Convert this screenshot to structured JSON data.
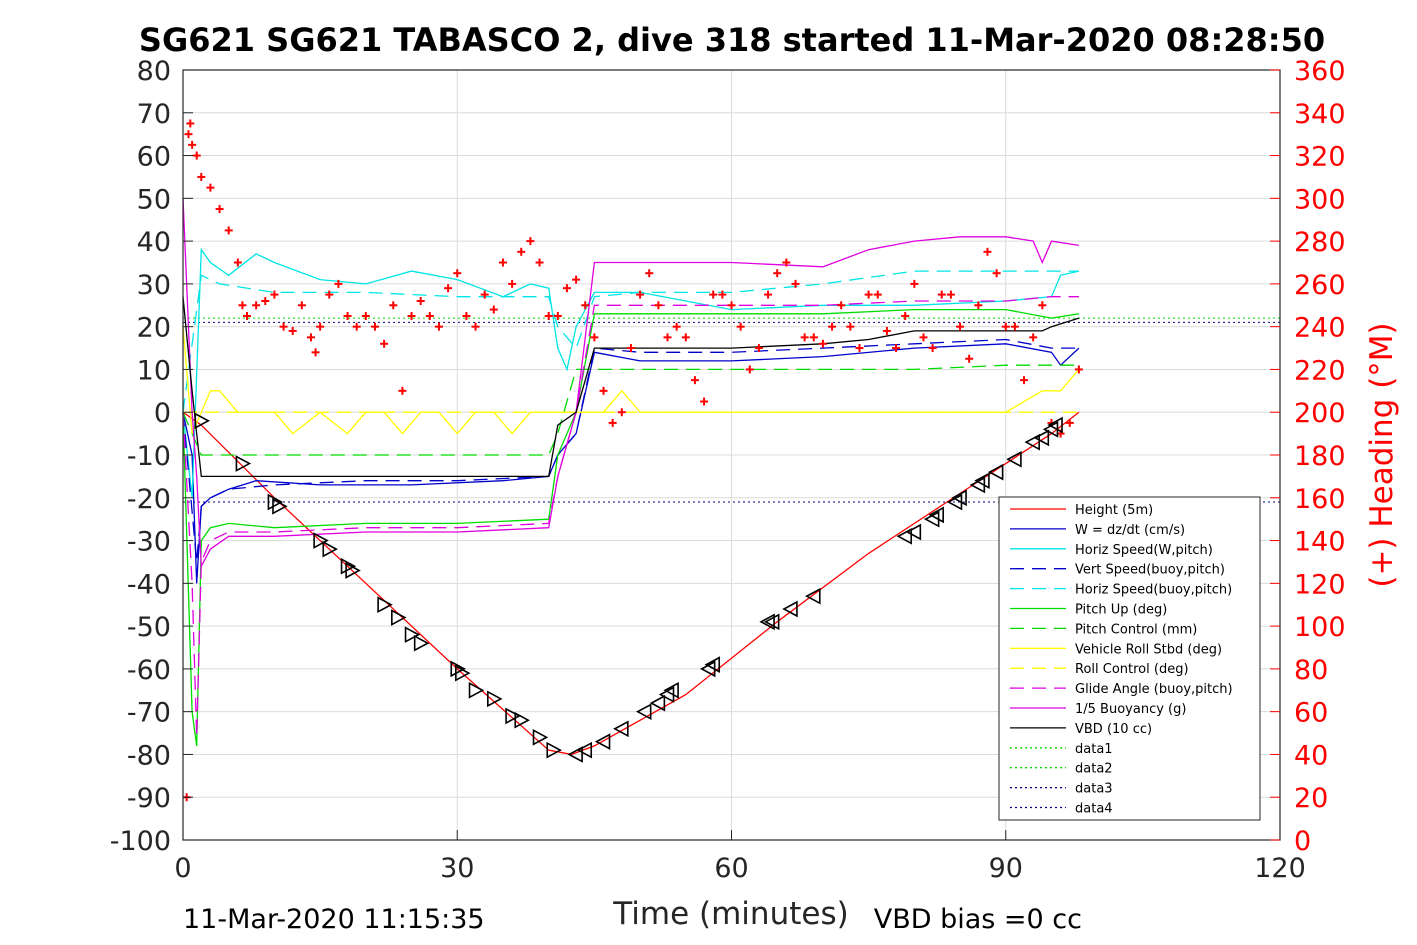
{
  "chart_data": {
    "type": "line",
    "title": "SG621 SG621 TABASCO 2, dive 318 started 11-Mar-2020 08:28:50",
    "xlabel": "Time (minutes)",
    "ylabel_right": "(+) Heading (°M)",
    "xlim": [
      0,
      120
    ],
    "ylim": [
      -100,
      80
    ],
    "y2lim": [
      0,
      360
    ],
    "x_ticks": [
      "0",
      "30",
      "60",
      "90",
      "120"
    ],
    "y_ticks": [
      "80",
      "70",
      "60",
      "50",
      "40",
      "30",
      "20",
      "10",
      "0",
      "-10",
      "-20",
      "-30",
      "-40",
      "-50",
      "-60",
      "-70",
      "-80",
      "-90",
      "-100"
    ],
    "y2_ticks": [
      "360",
      "340",
      "320",
      "300",
      "280",
      "260",
      "240",
      "220",
      "200",
      "180",
      "160",
      "140",
      "120",
      "100",
      "80",
      "60",
      "40",
      "20",
      "0"
    ],
    "grid": true,
    "legend_position": "bottom-right",
    "footer_left": "11-Mar-2020 11:15:35",
    "footer_right": "VBD bias =0 cc",
    "colors": {
      "height": "#ff0000",
      "w": "#0000cc",
      "horiz_speed": "#00e5e5",
      "vert_speed_buoy": "#0000cc",
      "horiz_speed_buoy": "#00e5e5",
      "pitch_up": "#00dd00",
      "pitch_control": "#00dd00",
      "roll": "#ffff00",
      "roll_control": "#ffff00",
      "glide_angle": "#e000e0",
      "buoyancy": "#e000e0",
      "vbd": "#000000",
      "heading": "#ff0000"
    },
    "legend": [
      {
        "label": "Height (5m)",
        "color": "#ff0000",
        "dash": "solid"
      },
      {
        "label": "W = dz/dt (cm/s)",
        "color": "#0000cc",
        "dash": "solid"
      },
      {
        "label": "Horiz Speed(W,pitch)",
        "color": "#00e5e5",
        "dash": "solid"
      },
      {
        "label": "Vert Speed(buoy,pitch)",
        "color": "#0000cc",
        "dash": "dashed"
      },
      {
        "label": "Horiz Speed(buoy,pitch)",
        "color": "#00e5e5",
        "dash": "dashed"
      },
      {
        "label": "Pitch Up (deg)",
        "color": "#00dd00",
        "dash": "solid"
      },
      {
        "label": "Pitch Control (mm)",
        "color": "#00dd00",
        "dash": "dashed"
      },
      {
        "label": "Vehicle Roll Stbd (deg)",
        "color": "#ffff00",
        "dash": "solid"
      },
      {
        "label": "Roll Control (deg)",
        "color": "#ffff00",
        "dash": "dashed"
      },
      {
        "label": "Glide Angle (buoy,pitch)",
        "color": "#e000e0",
        "dash": "dashed"
      },
      {
        "label": "1/5 Buoyancy (g)",
        "color": "#e000e0",
        "dash": "solid"
      },
      {
        "label": "VBD (10 cc)",
        "color": "#000000",
        "dash": "solid"
      },
      {
        "label": "data1",
        "color": "#00dd00",
        "dash": "dotted"
      },
      {
        "label": "data2",
        "color": "#00dd00",
        "dash": "dotted"
      },
      {
        "label": "data3",
        "color": "#000080",
        "dash": "dotted"
      },
      {
        "label": "data4",
        "color": "#000080",
        "dash": "dotted"
      }
    ],
    "series": [
      {
        "key": "height",
        "dash": "solid",
        "width": 1,
        "x": [
          0,
          2,
          10,
          20,
          30,
          40,
          42.5,
          45,
          55,
          65,
          75,
          85,
          95,
          98
        ],
        "y": [
          0,
          -3,
          -20,
          -40,
          -60,
          -79,
          -80,
          -78,
          -66,
          -49,
          -33,
          -19,
          -5,
          0
        ]
      },
      {
        "key": "w",
        "dash": "solid",
        "width": 1,
        "x": [
          0,
          1,
          1.5,
          2,
          3,
          5,
          8,
          15,
          25,
          35,
          40,
          41,
          43,
          45,
          50,
          60,
          70,
          80,
          90,
          95,
          96,
          98
        ],
        "y": [
          0,
          -10,
          -40,
          -22,
          -20,
          -18,
          -16,
          -17,
          -17,
          -16,
          -15,
          -10,
          -5,
          14,
          12,
          12,
          13,
          15,
          16,
          14,
          11,
          15
        ]
      },
      {
        "key": "horiz_speed",
        "dash": "solid",
        "width": 1,
        "x": [
          0,
          1,
          2,
          3,
          5,
          8,
          10,
          15,
          20,
          25,
          30,
          35,
          38,
          40,
          41,
          42,
          43,
          45,
          50,
          60,
          70,
          80,
          90,
          95,
          96,
          98
        ],
        "y": [
          0,
          -20,
          38,
          35,
          32,
          37,
          35,
          31,
          30,
          33,
          31,
          27,
          30,
          29,
          15,
          10,
          20,
          28,
          28,
          24,
          25,
          25,
          26,
          27,
          32,
          33
        ]
      },
      {
        "key": "vert_speed_buoy",
        "dash": "dashed",
        "width": 1,
        "x": [
          0,
          1.5,
          2,
          3,
          5,
          10,
          20,
          30,
          40,
          41,
          43,
          45,
          50,
          60,
          70,
          80,
          90,
          95,
          98
        ],
        "y": [
          0,
          -35,
          -22,
          -20,
          -18,
          -17,
          -16,
          -16,
          -15,
          -10,
          -5,
          15,
          14,
          14,
          15,
          16,
          17,
          15,
          15
        ]
      },
      {
        "key": "horiz_speed_buoy",
        "dash": "dashed",
        "width": 1,
        "x": [
          0,
          2,
          4,
          10,
          20,
          30,
          40,
          41,
          43,
          45,
          50,
          60,
          70,
          80,
          90,
          95,
          98
        ],
        "y": [
          0,
          32,
          30,
          28,
          28,
          27,
          27,
          20,
          15,
          27,
          28,
          28,
          30,
          33,
          33,
          33,
          33
        ]
      },
      {
        "key": "pitch_up",
        "dash": "solid",
        "width": 1,
        "x": [
          0,
          1,
          1.5,
          2,
          3,
          5,
          10,
          20,
          30,
          40,
          41,
          43,
          45,
          50,
          60,
          70,
          80,
          90,
          95,
          98
        ],
        "y": [
          0,
          -70,
          -78,
          -30,
          -27,
          -26,
          -27,
          -26,
          -26,
          -25,
          -10,
          0,
          23,
          23,
          23,
          23,
          24,
          24,
          22,
          23
        ]
      },
      {
        "key": "pitch_control",
        "dash": "dashed",
        "width": 1,
        "x": [
          0,
          2,
          10,
          20,
          30,
          40,
          41,
          43,
          45,
          50,
          60,
          70,
          80,
          90,
          95,
          98
        ],
        "y": [
          0,
          -10,
          -10,
          -10,
          -10,
          -10,
          -5,
          10,
          10,
          10,
          10,
          10,
          10,
          11,
          11,
          11
        ]
      },
      {
        "key": "roll",
        "dash": "solid",
        "width": 1,
        "x": [
          0,
          1,
          2,
          3,
          4,
          6,
          8,
          10,
          12,
          15,
          18,
          20,
          22,
          24,
          26,
          28,
          30,
          32,
          34,
          36,
          38,
          40,
          42,
          44,
          46,
          48,
          50,
          54,
          58,
          62,
          66,
          70,
          74,
          78,
          82,
          86,
          90,
          94,
          96,
          98
        ],
        "y": [
          20,
          -5,
          0,
          5,
          5,
          0,
          0,
          0,
          -5,
          0,
          -5,
          0,
          0,
          -5,
          0,
          0,
          -5,
          0,
          0,
          -5,
          0,
          0,
          0,
          0,
          0,
          5,
          0,
          0,
          0,
          0,
          0,
          0,
          0,
          0,
          0,
          0,
          0,
          5,
          5,
          10
        ]
      },
      {
        "key": "roll_control",
        "dash": "dashed",
        "width": 1,
        "x": [
          0,
          2,
          4,
          8,
          12,
          16,
          20,
          24,
          28,
          32,
          36,
          40,
          44,
          48,
          52,
          56,
          60,
          64,
          68,
          72,
          76,
          80,
          84,
          88,
          92,
          96,
          98
        ],
        "y": [
          0,
          0,
          0,
          0,
          0,
          0,
          0,
          0,
          0,
          0,
          0,
          0,
          0,
          0,
          0,
          0,
          0,
          0,
          0,
          0,
          0,
          0,
          0,
          0,
          0,
          0,
          0
        ]
      },
      {
        "key": "glide_angle",
        "dash": "dashed",
        "width": 1,
        "x": [
          0,
          1,
          1.5,
          2,
          3,
          5,
          10,
          20,
          30,
          40,
          41,
          43,
          45,
          50,
          60,
          70,
          80,
          90,
          95,
          98
        ],
        "y": [
          0,
          -40,
          -76,
          -35,
          -30,
          -28,
          -28,
          -27,
          -27,
          -26,
          -15,
          0,
          25,
          25,
          25,
          25,
          26,
          26,
          27,
          27
        ]
      },
      {
        "key": "buoyancy",
        "dash": "solid",
        "width": 1,
        "x": [
          0,
          1,
          1.5,
          2,
          3,
          5,
          10,
          20,
          30,
          40,
          41,
          43,
          45,
          50,
          60,
          70,
          75,
          80,
          85,
          90,
          93,
          94,
          95,
          98
        ],
        "y": [
          50,
          0,
          -15,
          -36,
          -32,
          -29,
          -29,
          -28,
          -28,
          -27,
          -15,
          0,
          35,
          35,
          35,
          34,
          38,
          40,
          41,
          41,
          40,
          35,
          40,
          39
        ]
      },
      {
        "key": "vbd",
        "dash": "solid",
        "width": 1,
        "x": [
          0,
          1,
          2,
          3,
          10,
          20,
          30,
          40,
          41,
          43,
          45,
          50,
          60,
          70,
          75,
          80,
          90,
          94,
          95,
          98
        ],
        "y": [
          27,
          5,
          -15,
          -15,
          -15,
          -15,
          -15,
          -15,
          -3,
          0,
          15,
          15,
          15,
          16,
          17,
          19,
          19,
          19,
          20,
          22
        ]
      }
    ],
    "reference_lines": [
      {
        "label": "data1",
        "y": 22,
        "color": "#00dd00",
        "dash": "dotted"
      },
      {
        "label": "data2",
        "y": -21,
        "color": "#00dd00",
        "dash": "dotted"
      },
      {
        "label": "data3",
        "y": 21,
        "color": "#000080",
        "dash": "dotted"
      },
      {
        "label": "data4",
        "y": -21,
        "color": "#000080",
        "dash": "dotted"
      }
    ],
    "heading": {
      "axis": "right",
      "marker": "+",
      "x": [
        0.4,
        0.6,
        0.8,
        1.0,
        1.5,
        2,
        3,
        4,
        5,
        6,
        6.5,
        7,
        8,
        9,
        10,
        11,
        12,
        13,
        14,
        14.5,
        15,
        16,
        17,
        18,
        19,
        20,
        21,
        22,
        23,
        24,
        25,
        26,
        27,
        28,
        29,
        30,
        31,
        32,
        33,
        34,
        35,
        36,
        37,
        38,
        39,
        40,
        41,
        42,
        43,
        44,
        45,
        46,
        47,
        48,
        49,
        50,
        51,
        52,
        53,
        54,
        55,
        56,
        57,
        58,
        59,
        60,
        61,
        62,
        63,
        64,
        65,
        66,
        67,
        68,
        69,
        70,
        71,
        72,
        73,
        74,
        75,
        76,
        77,
        78,
        79,
        80,
        81,
        82,
        83,
        84,
        85,
        86,
        87,
        88,
        89,
        90,
        91,
        92,
        93,
        94,
        95,
        96,
        97,
        98
      ],
      "y": [
        20,
        330,
        335,
        325,
        320,
        310,
        305,
        295,
        285,
        270,
        250,
        245,
        250,
        252,
        255,
        240,
        238,
        250,
        235,
        228,
        240,
        255,
        260,
        245,
        240,
        245,
        240,
        232,
        250,
        210,
        245,
        252,
        245,
        240,
        258,
        265,
        245,
        240,
        255,
        248,
        270,
        260,
        275,
        280,
        270,
        245,
        245,
        258,
        262,
        250,
        235,
        210,
        195,
        200,
        230,
        255,
        265,
        250,
        235,
        240,
        235,
        215,
        205,
        255,
        255,
        250,
        240,
        220,
        230,
        255,
        265,
        270,
        260,
        235,
        235,
        232,
        240,
        250,
        240,
        230,
        255,
        255,
        238,
        230,
        245,
        260,
        235,
        230,
        255,
        255,
        240,
        225,
        250,
        275,
        265,
        240,
        240,
        215,
        235,
        250,
        195,
        190,
        195,
        220
      ]
    },
    "triangles": {
      "x": [
        2,
        6.5,
        10,
        10.5,
        15,
        16,
        18,
        18.5,
        22,
        23.5,
        25,
        26,
        30,
        30.5,
        32,
        34,
        36,
        37,
        39,
        40.5,
        43,
        44,
        46,
        48,
        50.5,
        52,
        53,
        53.5,
        57.5,
        58,
        64,
        64.5,
        66.5,
        69,
        79,
        80,
        82,
        82.5,
        84.5,
        85,
        87,
        87.5,
        89,
        91,
        93,
        94,
        95,
        95.5
      ],
      "y": [
        -2,
        -12,
        -21,
        -22,
        -30,
        -32,
        -36,
        -37,
        -45,
        -48,
        -52,
        -54,
        -60,
        -61,
        -65,
        -67,
        -71,
        -72,
        -76,
        -79,
        -80,
        -79,
        -77,
        -74,
        -70,
        -68,
        -66,
        -65,
        -60,
        -59,
        -49,
        -49,
        -46,
        -43,
        -29,
        -28,
        -25,
        -24,
        -21,
        -20,
        -17,
        -16,
        -14,
        -11,
        -7,
        -6,
        -4,
        -3
      ]
    }
  }
}
